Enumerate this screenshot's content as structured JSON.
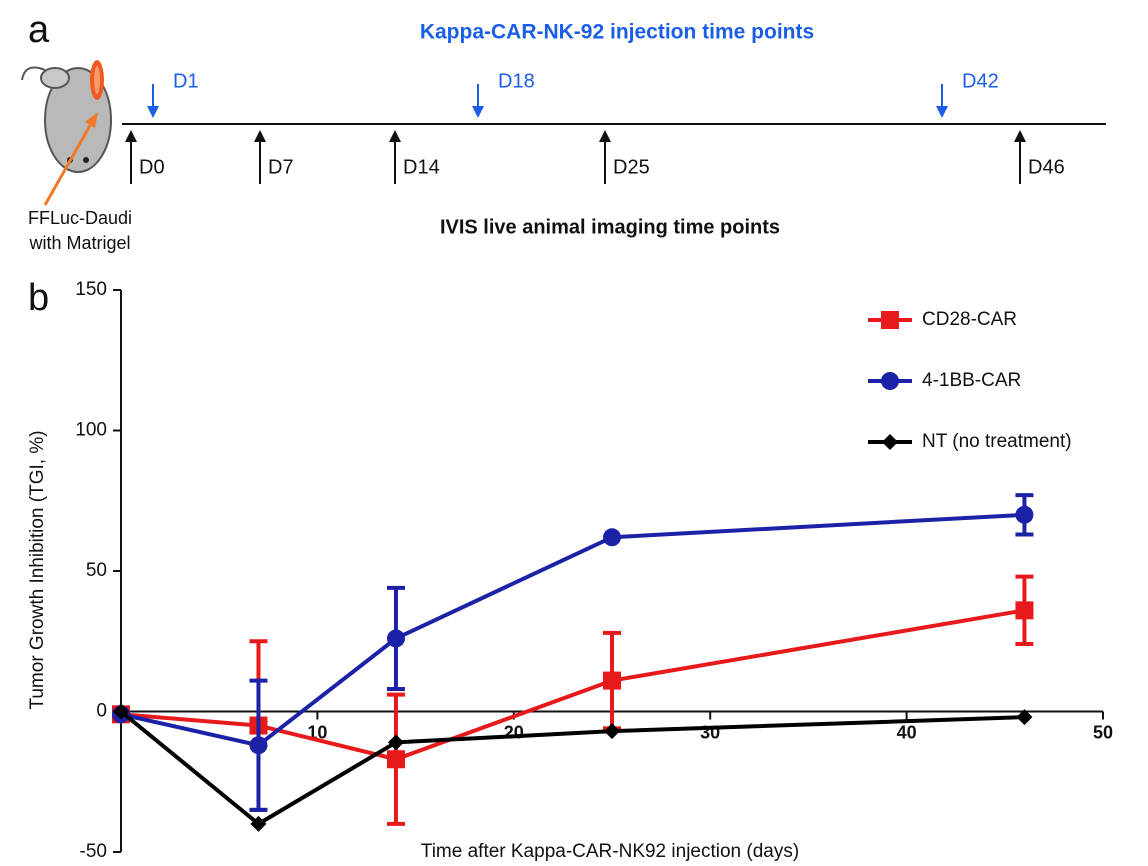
{
  "panel_a": {
    "label": "a",
    "injection_title": "Kappa-CAR-NK-92 injection time points",
    "injection_points": [
      "D1",
      "D18",
      "D42"
    ],
    "imaging_points": [
      "D0",
      "D7",
      "D14",
      "D25",
      "D46"
    ],
    "imaging_title": "IVIS live animal imaging time points",
    "cells_line1": "FFLuc-Daudi",
    "cells_line2": "with Matrigel"
  },
  "chart_data": {
    "type": "line",
    "panel_label": "b",
    "x_label": "Time after Kappa-CAR-NK92 injection (days)",
    "y_label": "Tumor Growth Inhibition (TGI, %)",
    "x": [
      0,
      7,
      14,
      25,
      46
    ],
    "xlim": [
      0,
      50
    ],
    "xticks": [
      10,
      20,
      30,
      40,
      50
    ],
    "ylim": [
      -50,
      150
    ],
    "yticks": [
      -50,
      0,
      50,
      100,
      150
    ],
    "series": [
      {
        "name": "CD28-CAR",
        "color": "#e8191b",
        "marker": "square",
        "values": [
          -1,
          -5,
          -17,
          11,
          36
        ],
        "errors": [
          null,
          30,
          23,
          17,
          12
        ]
      },
      {
        "name": "4-1BB-CAR",
        "color": "#1c22a8",
        "marker": "circle",
        "values": [
          -1,
          -12,
          26,
          62,
          70
        ],
        "errors": [
          null,
          23,
          18,
          null,
          7
        ]
      },
      {
        "name": "NT (no treatment)",
        "color": "#000000",
        "marker": "diamond",
        "values": [
          0,
          -40,
          -11,
          -7,
          -2
        ],
        "errors": [
          null,
          null,
          null,
          null,
          null
        ]
      }
    ]
  }
}
